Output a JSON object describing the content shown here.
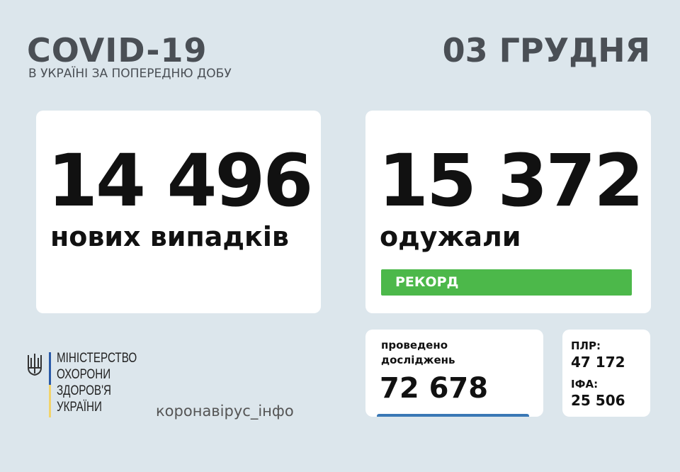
{
  "header": {
    "title": "COVID-19",
    "subtitle": "В УКРАЇНІ ЗА ПОПЕРЕДНЮ ДОБУ",
    "date": "03 ГРУДНЯ"
  },
  "cases": {
    "value": "14 496",
    "label": "нових випадків"
  },
  "recovered": {
    "value": "15 372",
    "label": "одужали",
    "badge": "РЕКОРД"
  },
  "tests": {
    "label_line1": "проведено",
    "label_line2": "досліджень",
    "value": "72 678"
  },
  "breakdown": {
    "pcr_label": "ПЛР:",
    "pcr_value": "47 172",
    "elisa_label": "ІФА:",
    "elisa_value": "25 506"
  },
  "footer": {
    "ministry": [
      "МІНІСТЕРСТВО",
      "ОХОРОНИ",
      "ЗДОРОВ'Я",
      "УКРАЇНИ"
    ],
    "hashtag": "коронавірус_інфо"
  },
  "colors": {
    "background": "#dce6ec",
    "text_dark": "#4a4f55",
    "badge_green": "#4cb84a",
    "bar_blue": "#3a78b5",
    "flag_blue": "#2a5aa8",
    "flag_yellow": "#f2d36b"
  }
}
